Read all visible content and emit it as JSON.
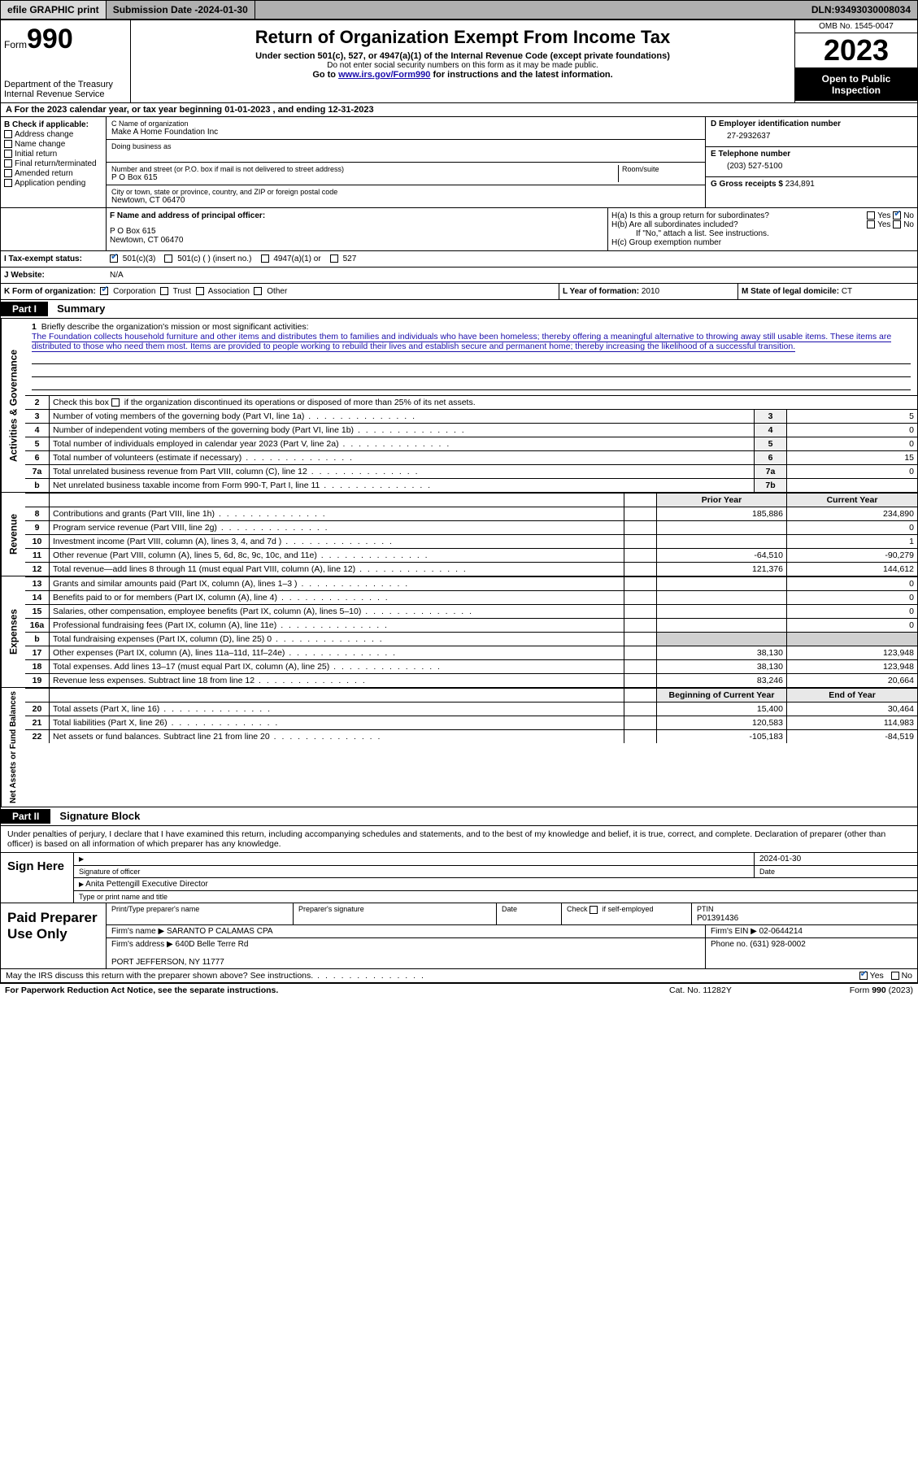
{
  "topbar": {
    "efile": "efile GRAPHIC print",
    "sub_label": "Submission Date - ",
    "sub_date": "2024-01-30",
    "dln_label": "DLN: ",
    "dln": "93493030008034"
  },
  "header": {
    "form_word": "Form",
    "form_num": "990",
    "dept": "Department of the Treasury\nInternal Revenue Service",
    "title": "Return of Organization Exempt From Income Tax",
    "sub1": "Under section 501(c), 527, or 4947(a)(1) of the Internal Revenue Code (except private foundations)",
    "sub2": "Do not enter social security numbers on this form as it may be made public.",
    "sub3_pre": "Go to ",
    "sub3_link": "www.irs.gov/Form990",
    "sub3_post": " for instructions and the latest information.",
    "omb": "OMB No. 1545-0047",
    "year": "2023",
    "inspect": "Open to Public Inspection"
  },
  "rowA": {
    "a": "A For the 2023 calendar year, or tax year beginning ",
    "begin": "01-01-2023",
    "mid": "   , and ending ",
    "end": "12-31-2023"
  },
  "colB": {
    "title": "B Check if applicable:",
    "opts": [
      "Address change",
      "Name change",
      "Initial return",
      "Final return/terminated",
      "Amended return",
      "Application pending"
    ]
  },
  "colC": {
    "name_lbl": "C Name of organization",
    "name": "Make A Home Foundation Inc",
    "dba_lbl": "Doing business as",
    "dba": "",
    "addr_lbl": "Number and street (or P.O. box if mail is not delivered to street address)",
    "room_lbl": "Room/suite",
    "addr": "P O Box 615",
    "city_lbl": "City or town, state or province, country, and ZIP or foreign postal code",
    "city": "Newtown, CT  06470"
  },
  "colD": {
    "ein_lbl": "D Employer identification number",
    "ein": "27-2932637",
    "tel_lbl": "E Telephone number",
    "tel": "(203) 527-5100",
    "gross_lbl": "G Gross receipts $ ",
    "gross": "234,891"
  },
  "rowF": {
    "lbl": "F  Name and address of principal officer:",
    "val": "P O Box 615\nNewtown, CT  06470",
    "ha": "H(a)  Is this a group return for subordinates?",
    "hb": "H(b)  Are all subordinates included?",
    "hb_note": "If \"No,\" attach a list. See instructions.",
    "hc": "H(c)  Group exemption number ",
    "yes": "Yes",
    "no": "No"
  },
  "rowI": {
    "lbl": "I   Tax-exempt status:",
    "o1": "501(c)(3)",
    "o2": "501(c) (  ) (insert no.)",
    "o3": "4947(a)(1) or",
    "o4": "527"
  },
  "rowJ": {
    "lbl": "J   Website:",
    "val": "N/A"
  },
  "rowK": {
    "lbl": "K Form of organization:",
    "opts": [
      "Corporation",
      "Trust",
      "Association",
      "Other"
    ],
    "L": "L Year of formation: ",
    "Lval": "2010",
    "M": "M State of legal domicile: ",
    "Mval": "CT"
  },
  "part1": {
    "part": "Part I",
    "title": "Summary"
  },
  "mission": {
    "num": "1",
    "lbl": "Briefly describe the organization's mission or most significant activities:",
    "text": "The Foundation collects household furniture and other items and distributes them to families and individuals who have been homeless; thereby offering a meaningful alternative to throwing away still usable items. These items are distributed to those who need them most. Items are provided to people working to rebuild their lives and establish secure and permanent home; thereby increasing the likelihood of a successful transition."
  },
  "gov": {
    "label": "Activities & Governance",
    "l2": "Check this box        if the organization discontinued its operations or disposed of more than 25% of its net assets.",
    "lines": [
      {
        "n": "3",
        "d": "Number of voting members of the governing body (Part VI, line 1a)",
        "r": "3",
        "v": "5"
      },
      {
        "n": "4",
        "d": "Number of independent voting members of the governing body (Part VI, line 1b)",
        "r": "4",
        "v": "0"
      },
      {
        "n": "5",
        "d": "Total number of individuals employed in calendar year 2023 (Part V, line 2a)",
        "r": "5",
        "v": "0"
      },
      {
        "n": "6",
        "d": "Total number of volunteers (estimate if necessary)",
        "r": "6",
        "v": "15"
      },
      {
        "n": "7a",
        "d": "Total unrelated business revenue from Part VIII, column (C), line 12",
        "r": "7a",
        "v": "0"
      },
      {
        "n": "b",
        "d": "Net unrelated business taxable income from Form 990-T, Part I, line 11",
        "r": "7b",
        "v": ""
      }
    ]
  },
  "rev": {
    "label": "Revenue",
    "head": {
      "py": "Prior Year",
      "cy": "Current Year"
    },
    "lines": [
      {
        "n": "8",
        "d": "Contributions and grants (Part VIII, line 1h)",
        "py": "185,886",
        "cy": "234,890"
      },
      {
        "n": "9",
        "d": "Program service revenue (Part VIII, line 2g)",
        "py": "",
        "cy": "0"
      },
      {
        "n": "10",
        "d": "Investment income (Part VIII, column (A), lines 3, 4, and 7d )",
        "py": "",
        "cy": "1"
      },
      {
        "n": "11",
        "d": "Other revenue (Part VIII, column (A), lines 5, 6d, 8c, 9c, 10c, and 11e)",
        "py": "-64,510",
        "cy": "-90,279"
      },
      {
        "n": "12",
        "d": "Total revenue—add lines 8 through 11 (must equal Part VIII, column (A), line 12)",
        "py": "121,376",
        "cy": "144,612"
      }
    ]
  },
  "exp": {
    "label": "Expenses",
    "lines": [
      {
        "n": "13",
        "d": "Grants and similar amounts paid (Part IX, column (A), lines 1–3 )",
        "py": "",
        "cy": "0"
      },
      {
        "n": "14",
        "d": "Benefits paid to or for members (Part IX, column (A), line 4)",
        "py": "",
        "cy": "0"
      },
      {
        "n": "15",
        "d": "Salaries, other compensation, employee benefits (Part IX, column (A), lines 5–10)",
        "py": "",
        "cy": "0"
      },
      {
        "n": "16a",
        "d": "Professional fundraising fees (Part IX, column (A), line 11e)",
        "py": "",
        "cy": "0"
      },
      {
        "n": "b",
        "d": "Total fundraising expenses (Part IX, column (D), line 25) 0",
        "py": "SHADE",
        "cy": "SHADE"
      },
      {
        "n": "17",
        "d": "Other expenses (Part IX, column (A), lines 11a–11d, 11f–24e)",
        "py": "38,130",
        "cy": "123,948"
      },
      {
        "n": "18",
        "d": "Total expenses. Add lines 13–17 (must equal Part IX, column (A), line 25)",
        "py": "38,130",
        "cy": "123,948"
      },
      {
        "n": "19",
        "d": "Revenue less expenses. Subtract line 18 from line 12",
        "py": "83,246",
        "cy": "20,664"
      }
    ]
  },
  "net": {
    "label": "Net Assets or Fund Balances",
    "head": {
      "py": "Beginning of Current Year",
      "cy": "End of Year"
    },
    "lines": [
      {
        "n": "20",
        "d": "Total assets (Part X, line 16)",
        "py": "15,400",
        "cy": "30,464"
      },
      {
        "n": "21",
        "d": "Total liabilities (Part X, line 26)",
        "py": "120,583",
        "cy": "114,983"
      },
      {
        "n": "22",
        "d": "Net assets or fund balances. Subtract line 21 from line 20",
        "py": "-105,183",
        "cy": "-84,519"
      }
    ]
  },
  "part2": {
    "part": "Part II",
    "title": "Signature Block"
  },
  "sig": {
    "decl": "Under penalties of perjury, I declare that I have examined this return, including accompanying schedules and statements, and to the best of my knowledge and belief, it is true, correct, and complete. Declaration of preparer (other than officer) is based on all information of which preparer has any knowledge.",
    "sign_here": "Sign Here",
    "sig_officer": "Signature of officer",
    "date": "2024-01-30",
    "date_lbl": "Date",
    "name_title": "Anita Pettengill  Executive Director",
    "type_lbl": "Type or print name and title"
  },
  "prep": {
    "lbl": "Paid Preparer Use Only",
    "c1": "Print/Type preparer's name",
    "c2": "Preparer's signature",
    "c3": "Date",
    "c4_lbl": "Check          if self-employed",
    "c5_lbl": "PTIN",
    "c5": "P01391436",
    "firm_lbl": "Firm's name      ",
    "firm": "SARANTO P CALAMAS CPA",
    "fein_lbl": "Firm's EIN  ",
    "fein": "02-0644214",
    "addr_lbl": "Firm's address ",
    "addr": "640D Belle Terre Rd\n\nPORT JEFFERSON, NY  11777",
    "phone_lbl": "Phone no. ",
    "phone": "(631) 928-0002"
  },
  "discuss": {
    "q": "May the IRS discuss this return with the preparer shown above? See instructions.",
    "yes": "Yes",
    "no": "No"
  },
  "footer": {
    "pra": "For Paperwork Reduction Act Notice, see the separate instructions.",
    "cat": "Cat. No. 11282Y",
    "form": "Form 990 (2023)"
  }
}
